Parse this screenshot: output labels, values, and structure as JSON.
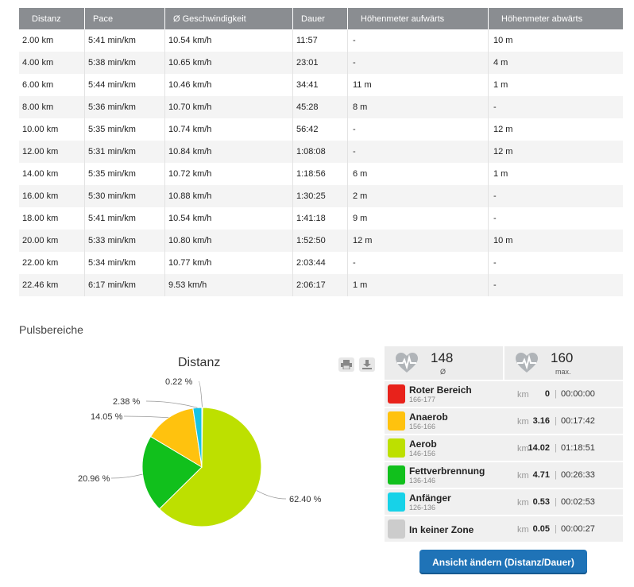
{
  "splits": {
    "headers": [
      "Distanz",
      "Pace",
      "Ø Geschwindigkeit",
      "Dauer",
      "Höhenmeter aufwärts",
      "Höhenmeter abwärts"
    ],
    "rows": [
      [
        "2.00 km",
        "5:41 min/km",
        "10.54 km/h",
        "11:57",
        "-",
        "10 m"
      ],
      [
        "4.00 km",
        "5:38 min/km",
        "10.65 km/h",
        "23:01",
        "-",
        "4 m"
      ],
      [
        "6.00 km",
        "5:44 min/km",
        "10.46 km/h",
        "34:41",
        "11 m",
        "1 m"
      ],
      [
        "8.00 km",
        "5:36 min/km",
        "10.70 km/h",
        "45:28",
        "8 m",
        "-"
      ],
      [
        "10.00 km",
        "5:35 min/km",
        "10.74 km/h",
        "56:42",
        "-",
        "12 m"
      ],
      [
        "12.00 km",
        "5:31 min/km",
        "10.84 km/h",
        "1:08:08",
        "-",
        "12 m"
      ],
      [
        "14.00 km",
        "5:35 min/km",
        "10.72 km/h",
        "1:18:56",
        "6 m",
        "1 m"
      ],
      [
        "16.00 km",
        "5:30 min/km",
        "10.88 km/h",
        "1:30:25",
        "2 m",
        "-"
      ],
      [
        "18.00 km",
        "5:41 min/km",
        "10.54 km/h",
        "1:41:18",
        "9 m",
        "-"
      ],
      [
        "20.00 km",
        "5:33 min/km",
        "10.80 km/h",
        "1:52:50",
        "12 m",
        "10 m"
      ],
      [
        "22.00 km",
        "5:34 min/km",
        "10.77 km/h",
        "2:03:44",
        "-",
        "-"
      ],
      [
        "22.46 km",
        "6:17 min/km",
        "9.53 km/h",
        "2:06:17",
        "1 m",
        "-"
      ]
    ]
  },
  "section_title": "Pulsbereiche",
  "chart_data": {
    "type": "pie",
    "title": "Distanz",
    "slices": [
      {
        "label": "0.22 %",
        "value": 0.22,
        "color": "#17c3e3"
      },
      {
        "label": "62.40 %",
        "value": 62.4,
        "color": "#bde000"
      },
      {
        "label": "20.96 %",
        "value": 20.96,
        "color": "#11c01c"
      },
      {
        "label": "14.05 %",
        "value": 14.05,
        "color": "#ffc20e"
      },
      {
        "label": "2.38 %",
        "value": 2.38,
        "color": "#17c3e3"
      }
    ]
  },
  "chart_tools": {
    "print_icon": "printer-icon",
    "download_icon": "download-icon"
  },
  "heart_rate": {
    "avg_value": "148",
    "avg_label": "Ø",
    "max_value": "160",
    "max_label": "max."
  },
  "zones": [
    {
      "name": "Roter Bereich",
      "range": "166-177",
      "unit": "km",
      "value": "0",
      "time": "00:00:00",
      "color": "#e8221b"
    },
    {
      "name": "Anaerob",
      "range": "156-166",
      "unit": "km",
      "value": "3.16",
      "time": "00:17:42",
      "color": "#ffc20e"
    },
    {
      "name": "Aerob",
      "range": "146-156",
      "unit": "km",
      "value": "14.02",
      "time": "01:18:51",
      "color": "#bde000"
    },
    {
      "name": "Fettverbrennung",
      "range": "136-146",
      "unit": "km",
      "value": "4.71",
      "time": "00:26:33",
      "color": "#11c01c"
    },
    {
      "name": "Anfänger",
      "range": "126-136",
      "unit": "km",
      "value": "0.53",
      "time": "00:02:53",
      "color": "#17d2e8"
    },
    {
      "name": "In keiner Zone",
      "range": "",
      "unit": "km",
      "value": "0.05",
      "time": "00:00:27",
      "color": "#cccccc"
    }
  ],
  "sep": "|",
  "button_label": "Ansicht ändern (Distanz/Dauer)"
}
